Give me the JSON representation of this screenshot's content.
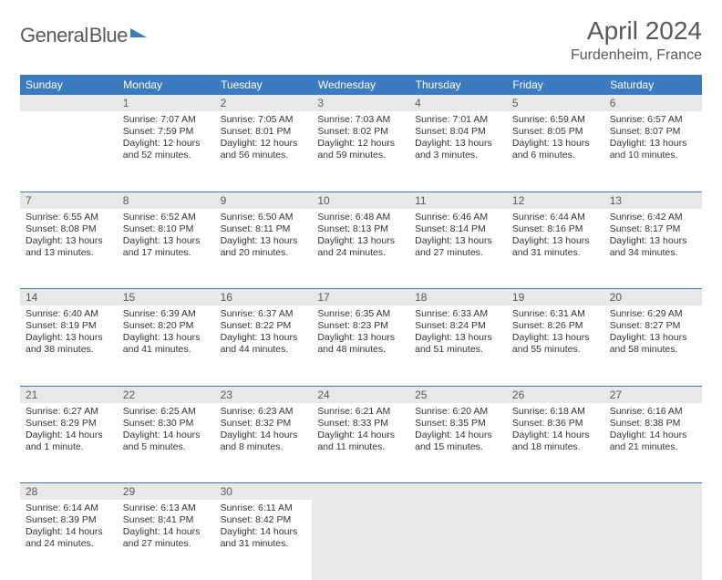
{
  "logo": {
    "text1": "General",
    "text2": "Blue"
  },
  "title": "April 2024",
  "location": "Furdenheim, France",
  "colors": {
    "accent": "#3b7bbf",
    "header_bg": "#3b7bbf",
    "daynum_bg": "#e8e8e8",
    "text_muted": "#58595b",
    "text_body": "#333333",
    "page_bg": "#ffffff"
  },
  "weekdays": [
    "Sunday",
    "Monday",
    "Tuesday",
    "Wednesday",
    "Thursday",
    "Friday",
    "Saturday"
  ],
  "weeks": [
    {
      "nums": [
        "",
        "1",
        "2",
        "3",
        "4",
        "5",
        "6"
      ],
      "cells": [
        null,
        {
          "sunrise": "Sunrise: 7:07 AM",
          "sunset": "Sunset: 7:59 PM",
          "day1": "Daylight: 12 hours",
          "day2": "and 52 minutes."
        },
        {
          "sunrise": "Sunrise: 7:05 AM",
          "sunset": "Sunset: 8:01 PM",
          "day1": "Daylight: 12 hours",
          "day2": "and 56 minutes."
        },
        {
          "sunrise": "Sunrise: 7:03 AM",
          "sunset": "Sunset: 8:02 PM",
          "day1": "Daylight: 12 hours",
          "day2": "and 59 minutes."
        },
        {
          "sunrise": "Sunrise: 7:01 AM",
          "sunset": "Sunset: 8:04 PM",
          "day1": "Daylight: 13 hours",
          "day2": "and 3 minutes."
        },
        {
          "sunrise": "Sunrise: 6:59 AM",
          "sunset": "Sunset: 8:05 PM",
          "day1": "Daylight: 13 hours",
          "day2": "and 6 minutes."
        },
        {
          "sunrise": "Sunrise: 6:57 AM",
          "sunset": "Sunset: 8:07 PM",
          "day1": "Daylight: 13 hours",
          "day2": "and 10 minutes."
        }
      ]
    },
    {
      "nums": [
        "7",
        "8",
        "9",
        "10",
        "11",
        "12",
        "13"
      ],
      "cells": [
        {
          "sunrise": "Sunrise: 6:55 AM",
          "sunset": "Sunset: 8:08 PM",
          "day1": "Daylight: 13 hours",
          "day2": "and 13 minutes."
        },
        {
          "sunrise": "Sunrise: 6:52 AM",
          "sunset": "Sunset: 8:10 PM",
          "day1": "Daylight: 13 hours",
          "day2": "and 17 minutes."
        },
        {
          "sunrise": "Sunrise: 6:50 AM",
          "sunset": "Sunset: 8:11 PM",
          "day1": "Daylight: 13 hours",
          "day2": "and 20 minutes."
        },
        {
          "sunrise": "Sunrise: 6:48 AM",
          "sunset": "Sunset: 8:13 PM",
          "day1": "Daylight: 13 hours",
          "day2": "and 24 minutes."
        },
        {
          "sunrise": "Sunrise: 6:46 AM",
          "sunset": "Sunset: 8:14 PM",
          "day1": "Daylight: 13 hours",
          "day2": "and 27 minutes."
        },
        {
          "sunrise": "Sunrise: 6:44 AM",
          "sunset": "Sunset: 8:16 PM",
          "day1": "Daylight: 13 hours",
          "day2": "and 31 minutes."
        },
        {
          "sunrise": "Sunrise: 6:42 AM",
          "sunset": "Sunset: 8:17 PM",
          "day1": "Daylight: 13 hours",
          "day2": "and 34 minutes."
        }
      ]
    },
    {
      "nums": [
        "14",
        "15",
        "16",
        "17",
        "18",
        "19",
        "20"
      ],
      "cells": [
        {
          "sunrise": "Sunrise: 6:40 AM",
          "sunset": "Sunset: 8:19 PM",
          "day1": "Daylight: 13 hours",
          "day2": "and 38 minutes."
        },
        {
          "sunrise": "Sunrise: 6:39 AM",
          "sunset": "Sunset: 8:20 PM",
          "day1": "Daylight: 13 hours",
          "day2": "and 41 minutes."
        },
        {
          "sunrise": "Sunrise: 6:37 AM",
          "sunset": "Sunset: 8:22 PM",
          "day1": "Daylight: 13 hours",
          "day2": "and 44 minutes."
        },
        {
          "sunrise": "Sunrise: 6:35 AM",
          "sunset": "Sunset: 8:23 PM",
          "day1": "Daylight: 13 hours",
          "day2": "and 48 minutes."
        },
        {
          "sunrise": "Sunrise: 6:33 AM",
          "sunset": "Sunset: 8:24 PM",
          "day1": "Daylight: 13 hours",
          "day2": "and 51 minutes."
        },
        {
          "sunrise": "Sunrise: 6:31 AM",
          "sunset": "Sunset: 8:26 PM",
          "day1": "Daylight: 13 hours",
          "day2": "and 55 minutes."
        },
        {
          "sunrise": "Sunrise: 6:29 AM",
          "sunset": "Sunset: 8:27 PM",
          "day1": "Daylight: 13 hours",
          "day2": "and 58 minutes."
        }
      ]
    },
    {
      "nums": [
        "21",
        "22",
        "23",
        "24",
        "25",
        "26",
        "27"
      ],
      "cells": [
        {
          "sunrise": "Sunrise: 6:27 AM",
          "sunset": "Sunset: 8:29 PM",
          "day1": "Daylight: 14 hours",
          "day2": "and 1 minute."
        },
        {
          "sunrise": "Sunrise: 6:25 AM",
          "sunset": "Sunset: 8:30 PM",
          "day1": "Daylight: 14 hours",
          "day2": "and 5 minutes."
        },
        {
          "sunrise": "Sunrise: 6:23 AM",
          "sunset": "Sunset: 8:32 PM",
          "day1": "Daylight: 14 hours",
          "day2": "and 8 minutes."
        },
        {
          "sunrise": "Sunrise: 6:21 AM",
          "sunset": "Sunset: 8:33 PM",
          "day1": "Daylight: 14 hours",
          "day2": "and 11 minutes."
        },
        {
          "sunrise": "Sunrise: 6:20 AM",
          "sunset": "Sunset: 8:35 PM",
          "day1": "Daylight: 14 hours",
          "day2": "and 15 minutes."
        },
        {
          "sunrise": "Sunrise: 6:18 AM",
          "sunset": "Sunset: 8:36 PM",
          "day1": "Daylight: 14 hours",
          "day2": "and 18 minutes."
        },
        {
          "sunrise": "Sunrise: 6:16 AM",
          "sunset": "Sunset: 8:38 PM",
          "day1": "Daylight: 14 hours",
          "day2": "and 21 minutes."
        }
      ]
    },
    {
      "nums": [
        "28",
        "29",
        "30",
        "",
        "",
        "",
        ""
      ],
      "cells": [
        {
          "sunrise": "Sunrise: 6:14 AM",
          "sunset": "Sunset: 8:39 PM",
          "day1": "Daylight: 14 hours",
          "day2": "and 24 minutes."
        },
        {
          "sunrise": "Sunrise: 6:13 AM",
          "sunset": "Sunset: 8:41 PM",
          "day1": "Daylight: 14 hours",
          "day2": "and 27 minutes."
        },
        {
          "sunrise": "Sunrise: 6:11 AM",
          "sunset": "Sunset: 8:42 PM",
          "day1": "Daylight: 14 hours",
          "day2": "and 31 minutes."
        },
        null,
        null,
        null,
        null
      ]
    }
  ]
}
